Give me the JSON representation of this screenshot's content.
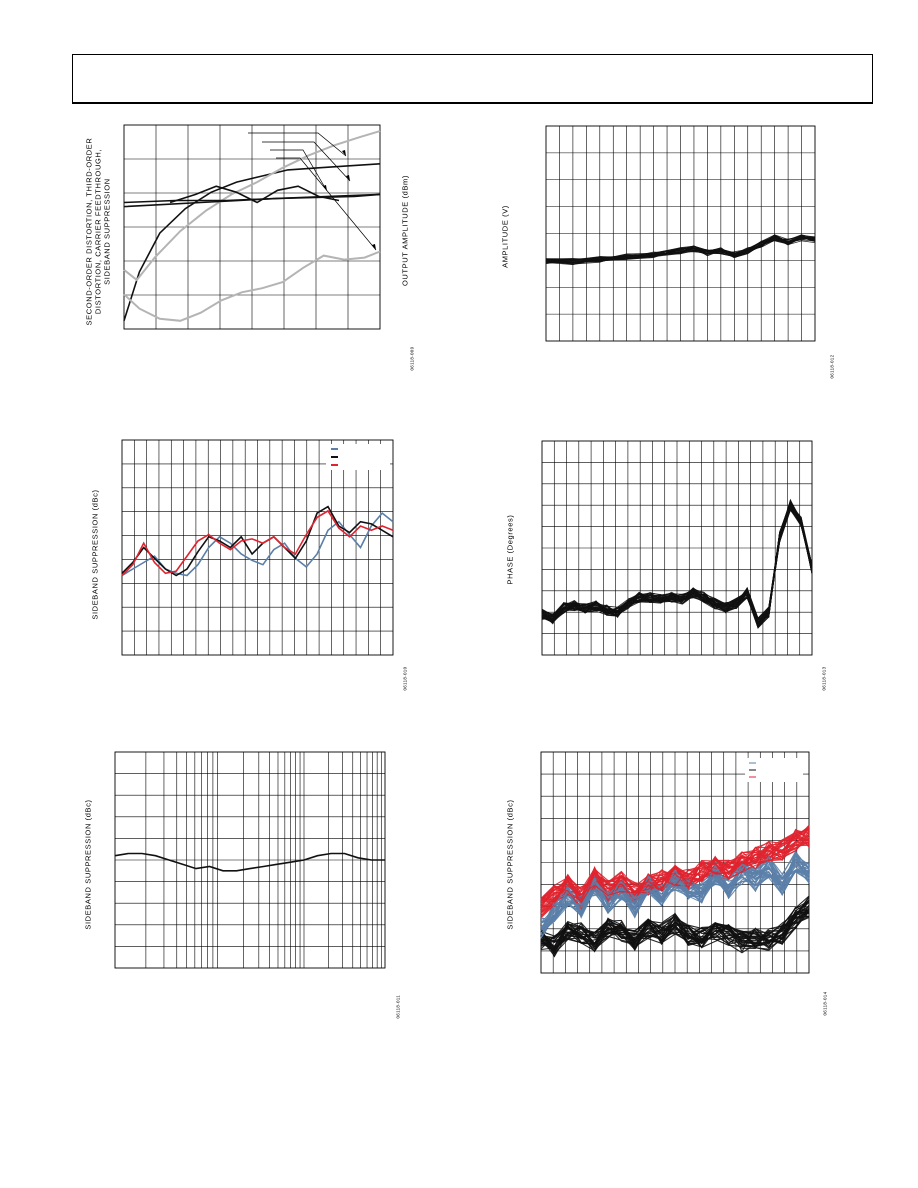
{
  "page": {
    "header_box": ""
  },
  "figures": [
    {
      "id": "fig1",
      "y_label_lines": [
        "SECOND-ORDER DISTORTION, THIRD-ORDER",
        "DISTORTION, CARRIER FEEDTHROUGH,",
        "SIDEBAND SUPPRESSION"
      ],
      "y2_label": "OUTPUT AMPLITUDE (dBm)",
      "code": "06118-009"
    },
    {
      "id": "fig2",
      "y_label": "AMPLITUDE (V)",
      "code": "06118-012"
    },
    {
      "id": "fig3",
      "y_label": "SIDEBAND SUPPRESSION (dBc)",
      "code": "06118-010"
    },
    {
      "id": "fig4",
      "y_label": "PHASE (Degrees)",
      "code": "06118-013"
    },
    {
      "id": "fig5",
      "y_label": "SIDEBAND SUPPRESSION (dBc)",
      "code": "06118-011"
    },
    {
      "id": "fig6",
      "y_label": "SIDEBAND SUPPRESSION (dBc)",
      "code": "06118-014"
    }
  ],
  "colors": {
    "grid": "#000000",
    "trace_black": "#111111",
    "trace_gray": "#b4b4b4",
    "trace_blue": "#5b7fa8",
    "trace_red": "#e0232f",
    "legend_blue": "#5b7fa8",
    "legend_black": "#111111",
    "legend_red": "#e0232f"
  },
  "chart_data": [
    {
      "type": "line",
      "title": "",
      "xlabel": "",
      "ylabel": "SECOND-ORDER DISTORTION, THIRD-ORDER DISTORTION, CARRIER FEEDTHROUGH, SIDEBAND SUPPRESSION",
      "y2label": "OUTPUT AMPLITUDE (dBm)",
      "x_range": [
        0,
        1
      ],
      "y_range": [
        0,
        1
      ],
      "grid": true,
      "series": [
        {
          "color": "trace_black",
          "x": [
            0,
            0.06,
            0.14,
            0.24,
            0.34,
            0.44,
            0.54,
            0.64,
            0.76,
            0.88,
            1
          ],
          "y": [
            0.04,
            0.28,
            0.47,
            0.59,
            0.67,
            0.72,
            0.75,
            0.78,
            0.79,
            0.8,
            0.81
          ]
        },
        {
          "color": "trace_gray",
          "x": [
            0,
            0.05,
            0.12,
            0.22,
            0.32,
            0.42,
            0.52,
            0.62,
            0.72,
            0.82,
            0.92,
            1
          ],
          "y": [
            0.29,
            0.24,
            0.35,
            0.48,
            0.58,
            0.66,
            0.72,
            0.79,
            0.85,
            0.9,
            0.94,
            0.97
          ]
        },
        {
          "color": "trace_gray",
          "x": [
            0,
            0.06,
            0.14,
            0.22,
            0.3,
            0.38,
            0.46,
            0.54,
            0.62,
            0.7,
            0.78,
            0.86,
            0.94,
            1
          ],
          "y": [
            0.17,
            0.1,
            0.05,
            0.04,
            0.08,
            0.14,
            0.18,
            0.2,
            0.23,
            0.3,
            0.36,
            0.34,
            0.35,
            0.38
          ]
        },
        {
          "color": "trace_black",
          "x": [
            0,
            0.2,
            0.4,
            0.6,
            0.8,
            1
          ],
          "y": [
            0.62,
            0.63,
            0.63,
            0.64,
            0.65,
            0.66
          ]
        },
        {
          "color": "trace_black",
          "x": [
            0,
            0.15,
            0.3,
            0.45,
            0.6,
            0.75,
            0.9,
            1
          ],
          "y": [
            0.6,
            0.61,
            0.62,
            0.63,
            0.64,
            0.645,
            0.65,
            0.66
          ]
        },
        {
          "color": "trace_black",
          "x": [
            0.18,
            0.28,
            0.36,
            0.44,
            0.52,
            0.6,
            0.68,
            0.76,
            0.84
          ],
          "y": [
            0.62,
            0.66,
            0.7,
            0.67,
            0.62,
            0.68,
            0.7,
            0.65,
            0.63
          ]
        }
      ]
    },
    {
      "type": "line",
      "title": "",
      "xlabel": "",
      "ylabel": "AMPLITUDE (V)",
      "x_range": [
        0,
        1
      ],
      "y_range": [
        0,
        1
      ],
      "grid": true,
      "series_count": 26,
      "series": [
        {
          "color": "trace_black",
          "x": [
            0,
            0.1,
            0.2,
            0.3,
            0.4,
            0.5,
            0.55,
            0.6,
            0.65,
            0.7,
            0.75,
            0.8,
            0.85,
            0.9,
            0.95,
            1
          ],
          "y": [
            0.37,
            0.37,
            0.38,
            0.39,
            0.4,
            0.42,
            0.43,
            0.41,
            0.42,
            0.4,
            0.42,
            0.45,
            0.48,
            0.46,
            0.48,
            0.47
          ]
        }
      ]
    },
    {
      "type": "line",
      "title": "",
      "xlabel": "",
      "ylabel": "SIDEBAND SUPPRESSION (dBc)",
      "x_range": [
        0,
        1
      ],
      "y_range": [
        0,
        1
      ],
      "grid": true,
      "legend": "top-right",
      "series": [
        {
          "color": "trace_blue",
          "x": [
            0,
            0.04,
            0.08,
            0.12,
            0.16,
            0.2,
            0.24,
            0.28,
            0.32,
            0.36,
            0.4,
            0.44,
            0.48,
            0.52,
            0.56,
            0.6,
            0.64,
            0.68,
            0.72,
            0.76,
            0.8,
            0.84,
            0.88,
            0.92,
            0.96,
            1
          ],
          "y": [
            0.37,
            0.4,
            0.43,
            0.46,
            0.4,
            0.38,
            0.37,
            0.42,
            0.5,
            0.55,
            0.52,
            0.47,
            0.44,
            0.42,
            0.49,
            0.52,
            0.45,
            0.41,
            0.47,
            0.58,
            0.62,
            0.56,
            0.5,
            0.6,
            0.66,
            0.62
          ]
        },
        {
          "color": "trace_black",
          "x": [
            0,
            0.04,
            0.08,
            0.12,
            0.16,
            0.2,
            0.24,
            0.28,
            0.32,
            0.36,
            0.4,
            0.44,
            0.48,
            0.52,
            0.56,
            0.6,
            0.64,
            0.68,
            0.72,
            0.76,
            0.8,
            0.84,
            0.88,
            0.92,
            0.96,
            1
          ],
          "y": [
            0.38,
            0.43,
            0.5,
            0.45,
            0.4,
            0.37,
            0.4,
            0.48,
            0.55,
            0.53,
            0.5,
            0.55,
            0.47,
            0.52,
            0.55,
            0.5,
            0.45,
            0.53,
            0.66,
            0.69,
            0.6,
            0.57,
            0.62,
            0.61,
            0.58,
            0.55
          ]
        },
        {
          "color": "trace_red",
          "x": [
            0,
            0.04,
            0.08,
            0.12,
            0.16,
            0.2,
            0.24,
            0.28,
            0.32,
            0.36,
            0.4,
            0.44,
            0.48,
            0.52,
            0.56,
            0.6,
            0.64,
            0.68,
            0.72,
            0.76,
            0.8,
            0.84,
            0.88,
            0.92,
            0.96,
            1
          ],
          "y": [
            0.37,
            0.42,
            0.52,
            0.43,
            0.38,
            0.39,
            0.46,
            0.53,
            0.56,
            0.52,
            0.49,
            0.53,
            0.54,
            0.52,
            0.55,
            0.5,
            0.47,
            0.56,
            0.64,
            0.67,
            0.59,
            0.55,
            0.6,
            0.58,
            0.6,
            0.58
          ]
        }
      ]
    },
    {
      "type": "line",
      "title": "",
      "xlabel": "",
      "ylabel": "PHASE (Degrees)",
      "x_range": [
        0,
        1
      ],
      "y_range": [
        0,
        1
      ],
      "grid": true,
      "series_count": 40,
      "series": [
        {
          "color": "trace_black",
          "x": [
            0,
            0.04,
            0.08,
            0.12,
            0.16,
            0.2,
            0.24,
            0.28,
            0.32,
            0.36,
            0.4,
            0.44,
            0.48,
            0.52,
            0.56,
            0.6,
            0.64,
            0.68,
            0.72,
            0.76,
            0.8,
            0.84,
            0.88,
            0.92,
            0.96,
            1
          ],
          "y": [
            0.19,
            0.17,
            0.22,
            0.23,
            0.22,
            0.23,
            0.21,
            0.2,
            0.24,
            0.27,
            0.27,
            0.26,
            0.27,
            0.26,
            0.29,
            0.27,
            0.24,
            0.22,
            0.24,
            0.29,
            0.15,
            0.2,
            0.55,
            0.7,
            0.62,
            0.4
          ]
        }
      ]
    },
    {
      "type": "line",
      "title": "",
      "xlabel": "",
      "ylabel": "SIDEBAND SUPPRESSION (dBc)",
      "x_range": [
        0,
        1
      ],
      "y_range": [
        0,
        1
      ],
      "grid": true,
      "x_scale": "log",
      "series": [
        {
          "color": "trace_black",
          "x": [
            0,
            0.05,
            0.1,
            0.15,
            0.2,
            0.25,
            0.3,
            0.35,
            0.4,
            0.45,
            0.5,
            0.55,
            0.6,
            0.65,
            0.7,
            0.75,
            0.8,
            0.85,
            0.9,
            0.95,
            1
          ],
          "y": [
            0.52,
            0.53,
            0.53,
            0.52,
            0.5,
            0.48,
            0.46,
            0.47,
            0.45,
            0.45,
            0.46,
            0.47,
            0.48,
            0.49,
            0.5,
            0.52,
            0.53,
            0.53,
            0.51,
            0.5,
            0.5
          ]
        }
      ]
    },
    {
      "type": "line",
      "title": "",
      "xlabel": "",
      "ylabel": "SIDEBAND SUPPRESSION (dBc)",
      "x_range": [
        0,
        1
      ],
      "y_range": [
        0,
        1
      ],
      "grid": true,
      "legend": "top-right",
      "series_count": 90,
      "series": [
        {
          "color": "trace_black",
          "x": [
            0,
            0.05,
            0.1,
            0.15,
            0.2,
            0.25,
            0.3,
            0.35,
            0.4,
            0.45,
            0.5,
            0.55,
            0.6,
            0.65,
            0.7,
            0.75,
            0.8,
            0.85,
            0.9,
            0.95,
            1
          ],
          "y": [
            0.15,
            0.12,
            0.2,
            0.18,
            0.14,
            0.2,
            0.19,
            0.15,
            0.2,
            0.18,
            0.22,
            0.17,
            0.16,
            0.19,
            0.17,
            0.14,
            0.16,
            0.15,
            0.18,
            0.25,
            0.3
          ]
        },
        {
          "color": "trace_blue",
          "x": [
            0,
            0.05,
            0.1,
            0.15,
            0.2,
            0.25,
            0.3,
            0.35,
            0.4,
            0.45,
            0.5,
            0.55,
            0.6,
            0.65,
            0.7,
            0.75,
            0.8,
            0.85,
            0.9,
            0.95,
            1
          ],
          "y": [
            0.2,
            0.28,
            0.35,
            0.3,
            0.4,
            0.32,
            0.38,
            0.3,
            0.4,
            0.35,
            0.42,
            0.38,
            0.36,
            0.45,
            0.38,
            0.45,
            0.42,
            0.48,
            0.4,
            0.5,
            0.45
          ]
        },
        {
          "color": "trace_red",
          "x": [
            0,
            0.05,
            0.1,
            0.15,
            0.2,
            0.25,
            0.3,
            0.35,
            0.4,
            0.45,
            0.5,
            0.55,
            0.6,
            0.65,
            0.7,
            0.75,
            0.8,
            0.85,
            0.9,
            0.95,
            1
          ],
          "y": [
            0.3,
            0.35,
            0.4,
            0.34,
            0.43,
            0.37,
            0.41,
            0.36,
            0.4,
            0.42,
            0.44,
            0.42,
            0.46,
            0.48,
            0.46,
            0.5,
            0.52,
            0.55,
            0.56,
            0.6,
            0.62
          ]
        }
      ]
    }
  ]
}
